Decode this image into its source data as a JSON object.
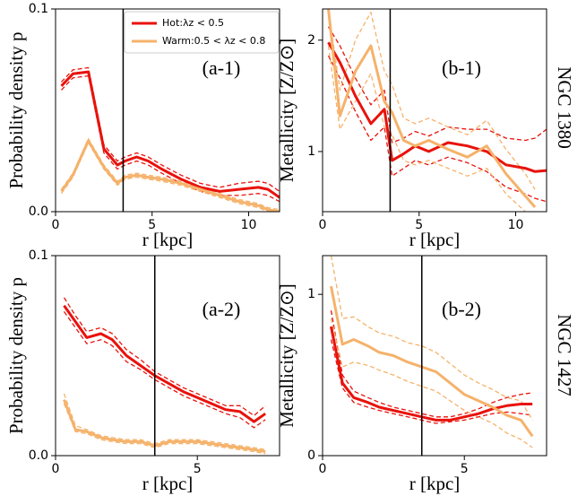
{
  "row_labels": [
    "NGC 1380",
    "NGC 1427"
  ],
  "chart_data": [
    {
      "type": "line",
      "annotation": "(a-1)",
      "xlabel": "r [kpc]",
      "ylabel": "Probability density p",
      "xlim": [
        0,
        11.6
      ],
      "ylim": [
        0,
        0.1
      ],
      "xticks": [
        0,
        5,
        10
      ],
      "yticks": [
        {
          "value": 0,
          "label": "0.0"
        },
        0.1
      ],
      "vline": 3.5,
      "legend": "upper center",
      "x": [
        0.3,
        0.9,
        1.7,
        2.5,
        3.2,
        3.6,
        4.2,
        4.8,
        5.5,
        6.5,
        7.5,
        8.5,
        9.5,
        10.5,
        11.0,
        11.6
      ],
      "series": [
        {
          "name": "Hot:λz < 0.5",
          "color": "#e8120c",
          "values": [
            0.062,
            0.068,
            0.069,
            0.031,
            0.023,
            0.025,
            0.027,
            0.025,
            0.021,
            0.016,
            0.012,
            0.01,
            0.011,
            0.012,
            0.011,
            0.007
          ],
          "lower": [
            0.06,
            0.066,
            0.067,
            0.029,
            0.021,
            0.023,
            0.025,
            0.023,
            0.019,
            0.014,
            0.01,
            0.008,
            0.008,
            0.009,
            0.008,
            0.005
          ],
          "upper": [
            0.064,
            0.07,
            0.071,
            0.033,
            0.025,
            0.027,
            0.029,
            0.027,
            0.023,
            0.018,
            0.014,
            0.012,
            0.014,
            0.015,
            0.014,
            0.01
          ]
        },
        {
          "name": "Warm:0.5 < λz < 0.8",
          "color": "#f5b26b",
          "values": [
            0.01,
            0.018,
            0.035,
            0.022,
            0.014,
            0.017,
            0.018,
            0.017,
            0.016,
            0.014,
            0.011,
            0.008,
            0.005,
            0.003,
            0.001,
            0.0
          ],
          "lower": [
            0.009,
            0.017,
            0.034,
            0.021,
            0.013,
            0.016,
            0.017,
            0.016,
            0.015,
            0.013,
            0.01,
            0.007,
            0.004,
            0.002,
            0.0,
            0.0
          ],
          "upper": [
            0.011,
            0.019,
            0.036,
            0.023,
            0.015,
            0.018,
            0.019,
            0.018,
            0.017,
            0.015,
            0.012,
            0.009,
            0.006,
            0.004,
            0.002,
            0.001
          ]
        }
      ]
    },
    {
      "type": "line",
      "annotation": "(b-1)",
      "xlabel": "r [kpc]",
      "ylabel": "Metallicity [Z/Z⊙]",
      "xlim": [
        0,
        11.6
      ],
      "ylim": [
        0.46,
        2.28
      ],
      "xticks": [
        0,
        5,
        10
      ],
      "yticks": [
        1,
        2
      ],
      "vline": 3.5,
      "x": [
        0.3,
        0.9,
        1.7,
        2.5,
        3.2,
        3.6,
        4.2,
        4.8,
        5.5,
        6.5,
        7.5,
        8.5,
        9.5,
        10.5,
        11.0,
        11.6
      ],
      "series": [
        {
          "color": "#e8120c",
          "values": [
            1.98,
            1.8,
            1.5,
            1.25,
            1.38,
            0.92,
            0.98,
            1.05,
            1.0,
            1.08,
            1.05,
            1.0,
            0.88,
            0.85,
            0.82,
            0.83
          ],
          "lower": [
            1.86,
            1.66,
            1.36,
            1.1,
            1.22,
            0.78,
            0.85,
            0.92,
            0.88,
            0.95,
            0.9,
            0.82,
            0.68,
            0.62,
            0.58,
            0.55
          ],
          "upper": [
            2.12,
            1.95,
            1.66,
            1.42,
            1.55,
            1.08,
            1.12,
            1.18,
            1.14,
            1.22,
            1.2,
            1.2,
            1.12,
            1.1,
            1.12,
            1.2
          ]
        },
        {
          "color": "#f5b26b",
          "values": [
            2.28,
            1.32,
            1.72,
            1.95,
            1.45,
            1.35,
            1.1,
            1.05,
            1.1,
            1.02,
            0.95,
            1.05,
            0.8,
            0.6,
            0.5,
            null
          ],
          "lower": [
            1.95,
            1.2,
            1.45,
            1.7,
            1.22,
            1.15,
            0.92,
            0.88,
            0.92,
            0.85,
            0.78,
            0.85,
            0.62,
            0.46,
            null,
            null
          ],
          "upper": [
            2.28,
            1.55,
            2.0,
            2.25,
            1.72,
            1.6,
            1.3,
            1.25,
            1.3,
            1.22,
            1.15,
            1.28,
            1.02,
            0.8,
            0.66,
            null
          ]
        }
      ]
    },
    {
      "type": "line",
      "annotation": "(a-2)",
      "xlabel": "r [kpc]",
      "ylabel": "Probability density p",
      "xlim": [
        0,
        7.9
      ],
      "ylim": [
        0,
        0.1
      ],
      "xticks": [
        0,
        5
      ],
      "yticks": [
        {
          "value": 0,
          "label": "0.0"
        },
        0.1
      ],
      "vline": 3.5,
      "x": [
        0.3,
        0.7,
        1.1,
        1.6,
        2.0,
        2.5,
        3.0,
        3.5,
        4.0,
        4.5,
        5.0,
        5.5,
        6.0,
        6.5,
        7.0,
        7.4
      ],
      "series": [
        {
          "color": "#e8120c",
          "values": [
            0.075,
            0.067,
            0.059,
            0.061,
            0.058,
            0.05,
            0.045,
            0.04,
            0.036,
            0.032,
            0.029,
            0.026,
            0.023,
            0.022,
            0.017,
            0.021
          ],
          "lower": [
            0.072,
            0.064,
            0.056,
            0.058,
            0.055,
            0.047,
            0.043,
            0.038,
            0.034,
            0.03,
            0.027,
            0.024,
            0.021,
            0.019,
            0.014,
            0.018
          ],
          "upper": [
            0.079,
            0.07,
            0.062,
            0.064,
            0.061,
            0.053,
            0.048,
            0.042,
            0.038,
            0.034,
            0.031,
            0.028,
            0.025,
            0.025,
            0.02,
            0.025
          ]
        },
        {
          "color": "#f5b26b",
          "values": [
            0.028,
            0.013,
            0.012,
            0.009,
            0.008,
            0.007,
            0.007,
            0.005,
            0.007,
            0.007,
            0.007,
            0.006,
            0.005,
            0.004,
            0.003,
            0.002
          ],
          "lower": [
            0.026,
            0.012,
            0.011,
            0.008,
            0.007,
            0.006,
            0.006,
            0.004,
            0.006,
            0.006,
            0.006,
            0.005,
            0.004,
            0.003,
            0.002,
            0.001
          ],
          "upper": [
            0.031,
            0.015,
            0.013,
            0.01,
            0.009,
            0.008,
            0.008,
            0.006,
            0.008,
            0.008,
            0.008,
            0.007,
            0.006,
            0.005,
            0.004,
            0.003
          ]
        }
      ]
    },
    {
      "type": "line",
      "annotation": "(b-2)",
      "xlabel": "r [kpc]",
      "ylabel": "Metallicity [Z/Z⊙]",
      "xlim": [
        0,
        7.9
      ],
      "ylim": [
        0,
        1.24
      ],
      "xticks": [
        0,
        5
      ],
      "yticks": [
        0,
        1
      ],
      "vline": 3.5,
      "x": [
        0.3,
        0.7,
        1.1,
        1.6,
        2.0,
        2.5,
        3.0,
        3.5,
        4.0,
        4.5,
        5.0,
        5.5,
        6.0,
        6.5,
        7.0,
        7.4
      ],
      "series": [
        {
          "color": "#e8120c",
          "values": [
            0.8,
            0.45,
            0.36,
            0.33,
            0.3,
            0.28,
            0.26,
            0.24,
            0.22,
            0.22,
            0.24,
            0.26,
            0.29,
            0.31,
            0.32,
            0.32
          ],
          "lower": [
            0.72,
            0.42,
            0.33,
            0.3,
            0.28,
            0.26,
            0.24,
            0.22,
            0.2,
            0.21,
            0.22,
            0.24,
            0.26,
            0.27,
            0.26,
            0.25
          ],
          "upper": [
            0.9,
            0.5,
            0.4,
            0.36,
            0.33,
            0.3,
            0.28,
            0.26,
            0.24,
            0.24,
            0.26,
            0.29,
            0.33,
            0.36,
            0.38,
            0.39
          ]
        },
        {
          "color": "#f5b26b",
          "values": [
            1.05,
            0.69,
            0.72,
            0.68,
            0.64,
            0.62,
            0.58,
            0.55,
            0.52,
            0.45,
            0.38,
            0.34,
            0.3,
            0.25,
            0.22,
            0.12
          ],
          "lower": [
            0.85,
            0.55,
            0.58,
            0.56,
            0.53,
            0.5,
            0.46,
            0.43,
            0.4,
            0.34,
            0.28,
            0.24,
            0.2,
            0.14,
            0.1,
            0.05
          ],
          "upper": [
            1.24,
            0.85,
            0.86,
            0.8,
            0.76,
            0.74,
            0.7,
            0.68,
            0.64,
            0.57,
            0.5,
            0.45,
            0.41,
            0.36,
            0.34,
            0.22
          ]
        }
      ]
    }
  ]
}
